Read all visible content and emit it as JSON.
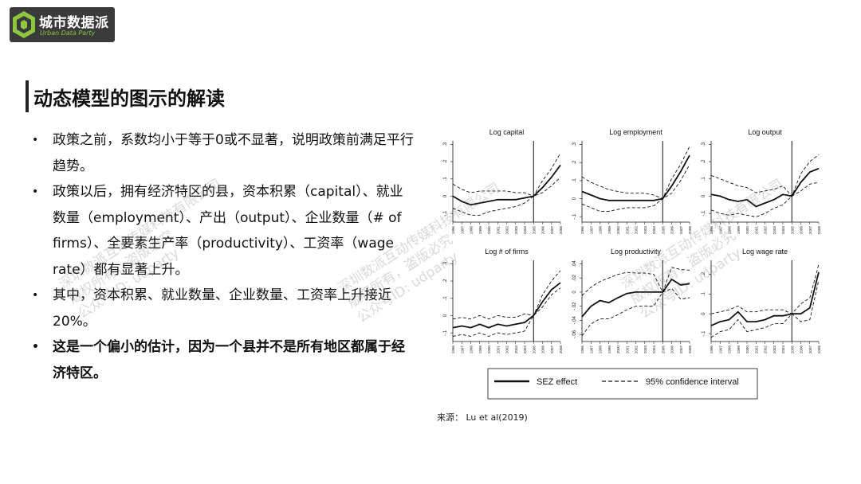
{
  "logo": {
    "name": "城市数据派",
    "sub": "Urban Data Party"
  },
  "title": "动态模型的图示的解读",
  "bullets": [
    {
      "text": "政策之前，系数均小于等于0或不显著，说明政策前满足平行趋势。",
      "bold": false
    },
    {
      "text": "政策以后，拥有经济特区的县，资本积累（capital）、就业数量（employment）、产出（output）、企业数量（# of firms）、全要素生产率（productivity）、工资率（wage rate）都有显著上升。",
      "bold": false
    },
    {
      "text": "其中，资本积累、就业数量、企业数量、工资率上升接近20%。",
      "bold": false
    },
    {
      "text": "这是一个偏小的估计，因为一个县并不是所有地区都属于经济特区。",
      "bold": true
    }
  ],
  "source": "来源：  Lu et al(2019)",
  "watermarks": [
    {
      "line1": "深圳数派互动传媒科技有限公司",
      "line2": "版权所有，盗版必究",
      "line3": "公众号ID: udparty"
    },
    {
      "line1": "深圳数派互动传媒科技有限公司",
      "line2": "版权所有，盗版必究",
      "line3": "公众号ID: udparty"
    },
    {
      "line1": "深圳数派互动传媒科技有限公司",
      "line2": "版权所有，盗版必究",
      "line3": "公众号ID: udparty"
    }
  ],
  "legend": {
    "solid": "SEZ effect",
    "dashed": "95% confidence interval"
  },
  "chart_data": [
    {
      "type": "line",
      "title": "Log capital",
      "x": [
        1996,
        1997,
        1998,
        1999,
        2000,
        2001,
        2002,
        2003,
        2004,
        2005,
        2006,
        2007,
        2008
      ],
      "yticks": [
        "-.1",
        "0",
        ".1",
        ".2",
        ".3"
      ],
      "ylim": [
        -0.15,
        0.32
      ],
      "event_x": 2005,
      "series": [
        {
          "name": "SEZ effect",
          "values": [
            0.0,
            -0.03,
            -0.05,
            -0.04,
            -0.03,
            -0.02,
            -0.02,
            -0.02,
            -0.01,
            0.0,
            0.05,
            0.11,
            0.18
          ]
        },
        {
          "name": "95% confidence interval",
          "values": [
            0.07,
            0.04,
            0.02,
            0.03,
            0.03,
            0.03,
            0.03,
            0.02,
            0.02,
            0.0,
            0.09,
            0.16,
            0.25
          ]
        },
        {
          "name": "95% confidence interval",
          "values": [
            -0.07,
            -0.09,
            -0.11,
            -0.11,
            -0.09,
            -0.08,
            -0.07,
            -0.06,
            -0.04,
            0.0,
            0.02,
            0.06,
            0.11
          ]
        }
      ]
    },
    {
      "type": "line",
      "title": "Log employment",
      "x": [
        1996,
        1997,
        1998,
        1999,
        2000,
        2001,
        2002,
        2003,
        2004,
        2005,
        2006,
        2007,
        2008
      ],
      "yticks": [
        "-.1",
        "0",
        ".1",
        ".2",
        ".3"
      ],
      "ylim": [
        -0.13,
        0.32
      ],
      "event_x": 2005,
      "series": [
        {
          "name": "SEZ effect",
          "values": [
            0.04,
            0.02,
            0.0,
            -0.01,
            -0.01,
            -0.01,
            -0.01,
            -0.01,
            -0.01,
            0.0,
            0.07,
            0.15,
            0.24
          ]
        },
        {
          "name": "95% confidence interval",
          "values": [
            0.12,
            0.09,
            0.07,
            0.05,
            0.04,
            0.03,
            0.03,
            0.03,
            0.02,
            0.0,
            0.11,
            0.19,
            0.29
          ]
        },
        {
          "name": "95% confidence interval",
          "values": [
            -0.03,
            -0.05,
            -0.07,
            -0.07,
            -0.06,
            -0.05,
            -0.05,
            -0.05,
            -0.04,
            0.0,
            0.03,
            0.1,
            0.19
          ]
        }
      ]
    },
    {
      "type": "line",
      "title": "Log output",
      "x": [
        1996,
        1997,
        1998,
        1999,
        2000,
        2001,
        2002,
        2003,
        2004,
        2005,
        2006,
        2007,
        2008
      ],
      "yticks": [
        "-.1",
        "0",
        ".1",
        ".2",
        ".3"
      ],
      "ylim": [
        -0.15,
        0.32
      ],
      "event_x": 2005,
      "series": [
        {
          "name": "SEZ effect",
          "values": [
            0.01,
            0.0,
            -0.02,
            -0.03,
            -0.02,
            -0.06,
            -0.04,
            -0.02,
            0.01,
            0.0,
            0.08,
            0.14,
            0.16
          ]
        },
        {
          "name": "95% confidence interval",
          "values": [
            0.12,
            0.1,
            0.08,
            0.06,
            0.05,
            0.02,
            0.03,
            0.04,
            0.06,
            0.0,
            0.13,
            0.2,
            0.24
          ]
        },
        {
          "name": "95% confidence interval",
          "values": [
            -0.08,
            -0.1,
            -0.11,
            -0.1,
            -0.11,
            -0.12,
            -0.1,
            -0.07,
            -0.05,
            0.0,
            0.03,
            0.07,
            0.08
          ]
        }
      ]
    },
    {
      "type": "line",
      "title": "Log # of firms",
      "x": [
        1996,
        1997,
        1998,
        1999,
        2000,
        2001,
        2002,
        2003,
        2004,
        2005,
        2006,
        2007,
        2008
      ],
      "yticks": [
        "-.1",
        "0",
        ".1",
        ".2",
        ".3"
      ],
      "ylim": [
        -0.15,
        0.32
      ],
      "event_x": 2005,
      "series": [
        {
          "name": "SEZ effect",
          "values": [
            -0.07,
            -0.06,
            -0.07,
            -0.05,
            -0.07,
            -0.05,
            -0.06,
            -0.05,
            -0.04,
            0.0,
            0.08,
            0.15,
            0.19
          ]
        },
        {
          "name": "95% confidence interval",
          "values": [
            -0.02,
            -0.01,
            -0.02,
            0.0,
            -0.02,
            0.0,
            -0.01,
            -0.01,
            0.01,
            0.0,
            0.12,
            0.2,
            0.26
          ]
        },
        {
          "name": "95% confidence interval",
          "values": [
            -0.12,
            -0.11,
            -0.12,
            -0.1,
            -0.12,
            -0.1,
            -0.11,
            -0.1,
            -0.09,
            0.0,
            0.05,
            0.12,
            0.16
          ]
        }
      ]
    },
    {
      "type": "line",
      "title": "Log productivity",
      "x": [
        1996,
        1997,
        1998,
        1999,
        2000,
        2001,
        2002,
        2003,
        2004,
        2005,
        2006,
        2007,
        2008
      ],
      "yticks": [
        "-.06",
        "-.04",
        "-.02",
        "0",
        ".02",
        ".04"
      ],
      "ylim": [
        -0.07,
        0.045
      ],
      "event_x": 2005,
      "series": [
        {
          "name": "SEZ effect",
          "values": [
            -0.035,
            -0.02,
            -0.012,
            -0.015,
            -0.008,
            -0.002,
            0.0,
            0.0,
            0.0,
            0.0,
            0.018,
            0.01,
            0.012
          ]
        },
        {
          "name": "95% confidence interval",
          "values": [
            -0.005,
            0.007,
            0.015,
            0.02,
            0.025,
            0.028,
            0.027,
            0.027,
            0.025,
            0.0,
            0.035,
            0.032,
            0.031
          ]
        },
        {
          "name": "95% confidence interval",
          "values": [
            -0.062,
            -0.045,
            -0.038,
            -0.038,
            -0.032,
            -0.025,
            -0.02,
            -0.02,
            -0.02,
            0.0,
            0.005,
            -0.01,
            -0.008
          ]
        }
      ]
    },
    {
      "type": "line",
      "title": "Log wage rate",
      "x": [
        1996,
        1997,
        1998,
        1999,
        2000,
        2001,
        2002,
        2003,
        2004,
        2005,
        2006,
        2007,
        2008
      ],
      "yticks": [
        "-.1",
        "0",
        ".1",
        ".2"
      ],
      "ylim": [
        -0.14,
        0.27
      ],
      "event_x": 2005,
      "series": [
        {
          "name": "SEZ effect",
          "values": [
            -0.06,
            -0.04,
            -0.03,
            0.01,
            -0.04,
            -0.04,
            -0.03,
            -0.01,
            -0.01,
            0.0,
            0.0,
            0.03,
            0.21
          ]
        },
        {
          "name": "95% confidence interval",
          "values": [
            0.0,
            0.01,
            0.02,
            0.04,
            0.01,
            0.01,
            0.02,
            0.02,
            0.02,
            0.0,
            0.05,
            0.08,
            0.25
          ]
        },
        {
          "name": "95% confidence interval",
          "values": [
            -0.12,
            -0.09,
            -0.08,
            -0.03,
            -0.09,
            -0.08,
            -0.07,
            -0.05,
            -0.05,
            0.0,
            -0.04,
            -0.03,
            0.17
          ]
        }
      ]
    }
  ]
}
